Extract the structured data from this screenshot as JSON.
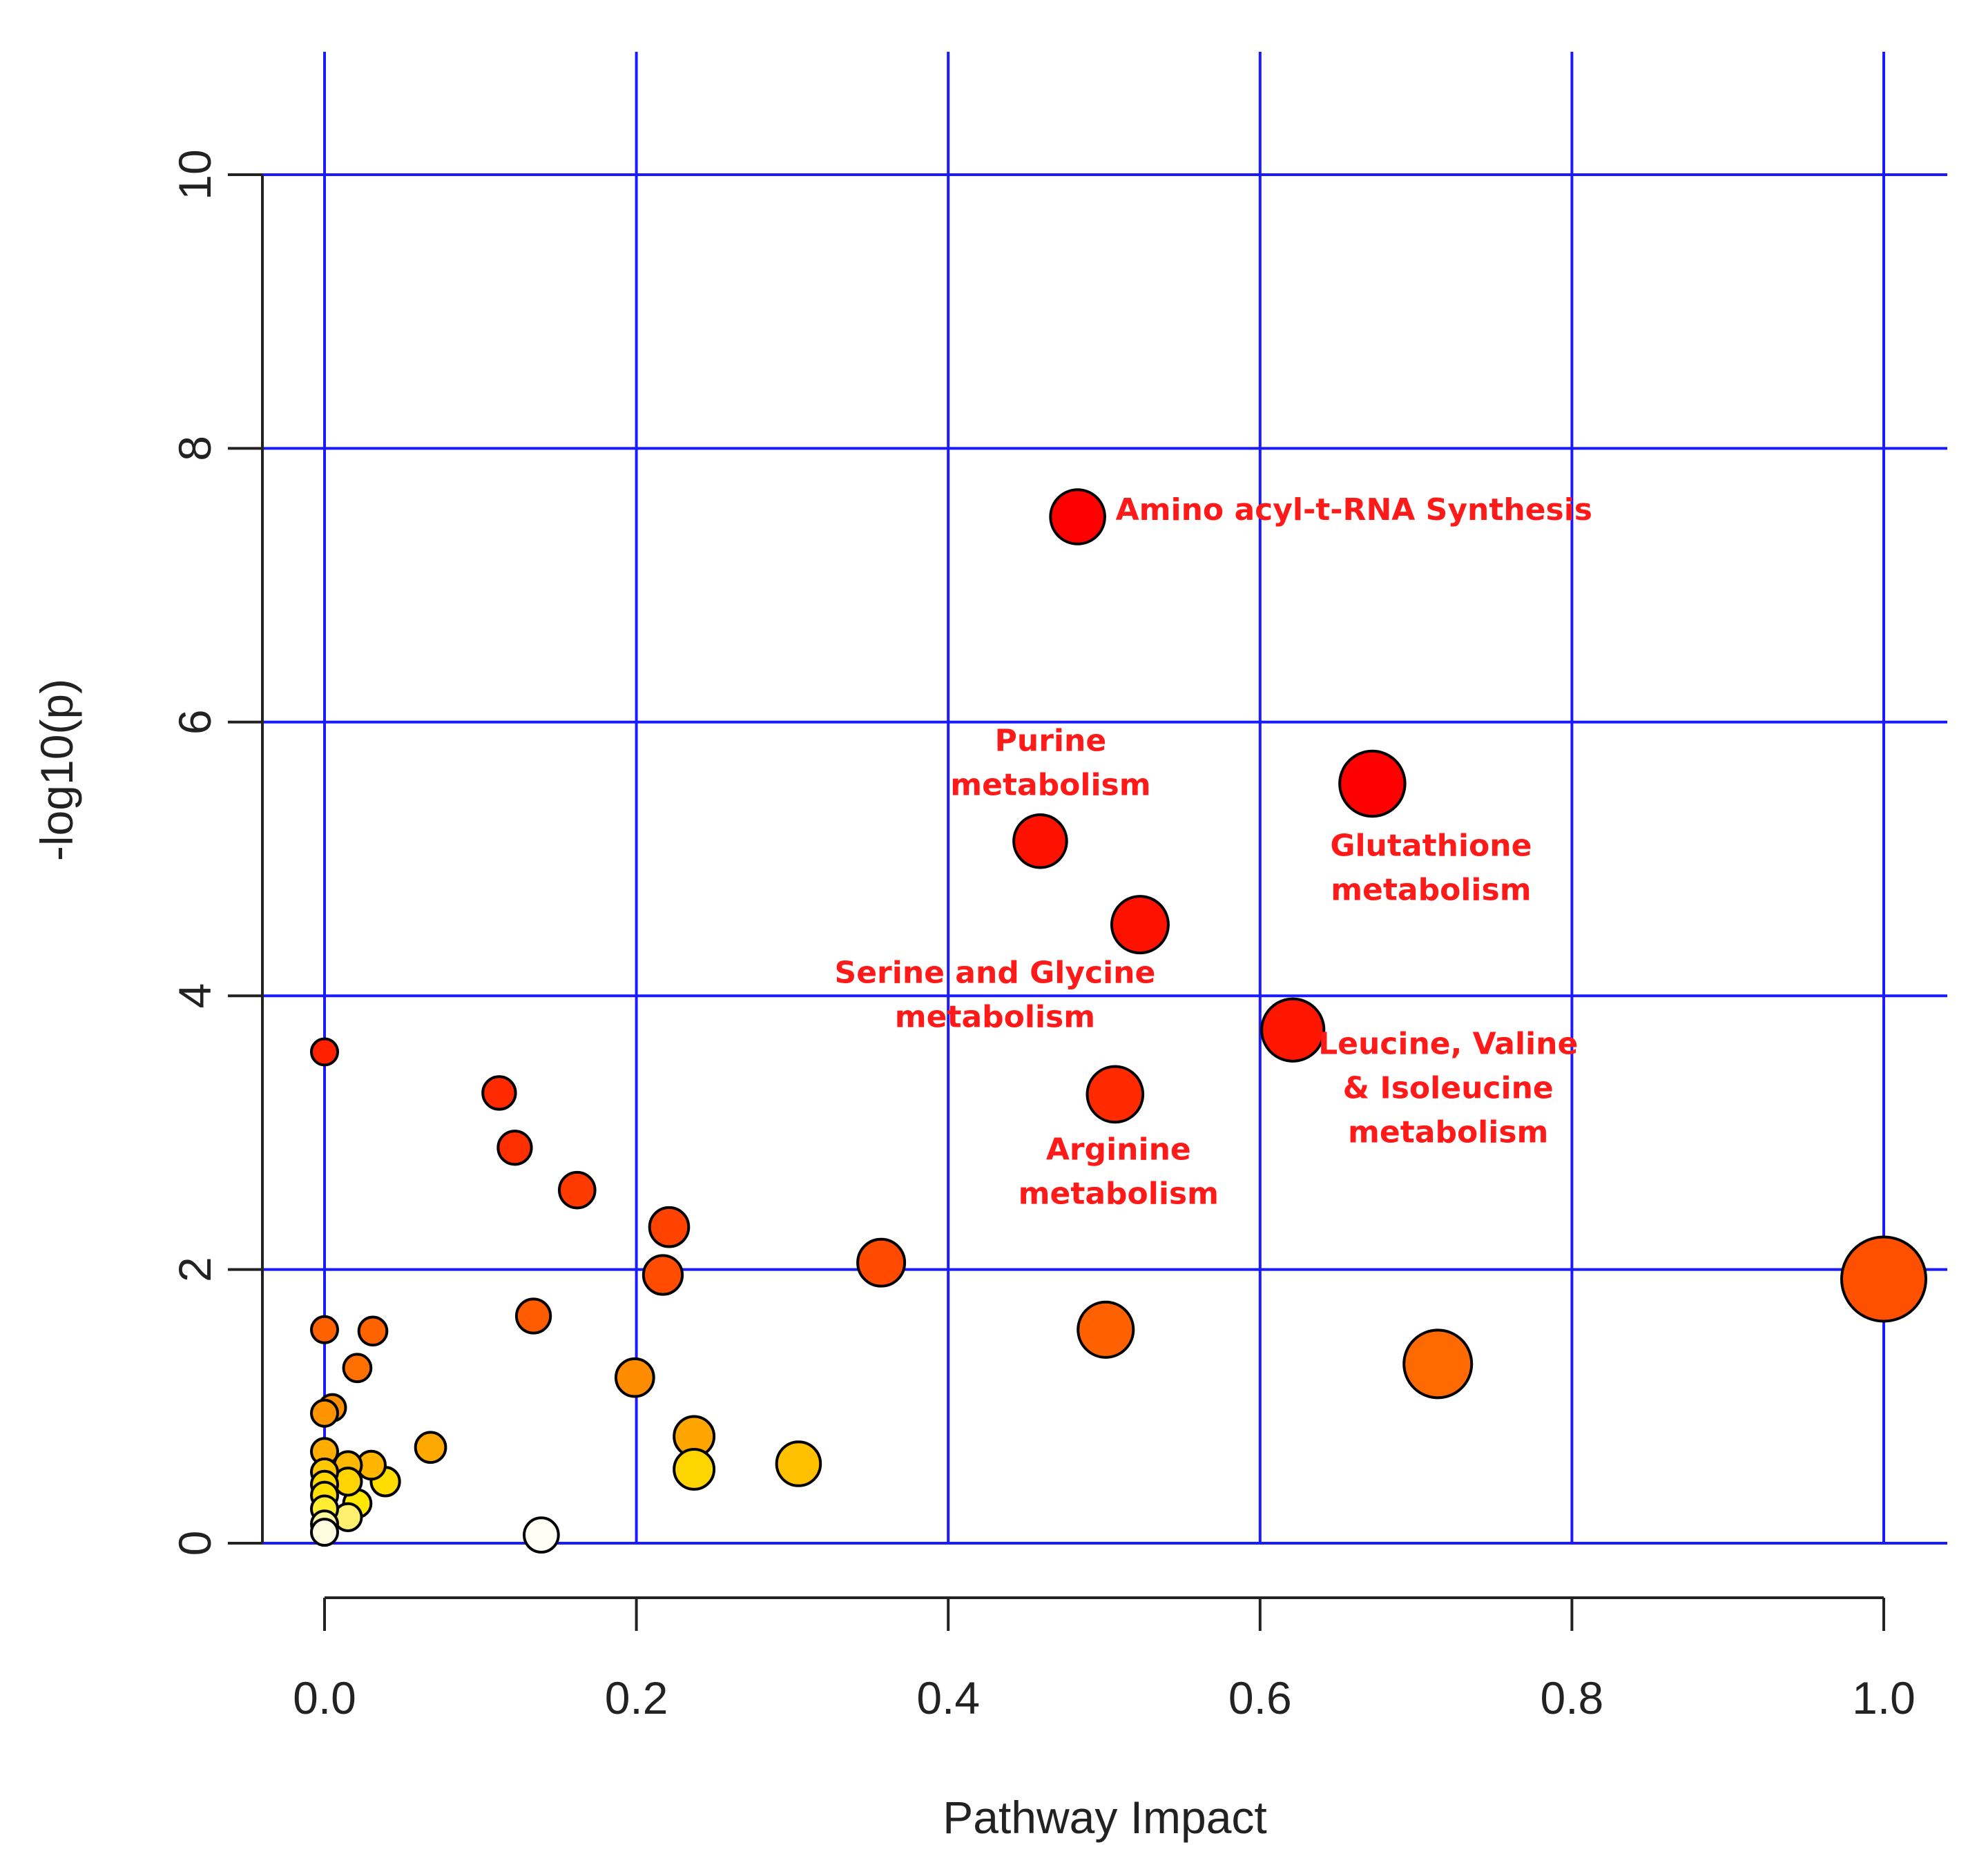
{
  "chart_data": {
    "type": "scatter",
    "title": "",
    "xlabel": "Pathway Impact",
    "ylabel": "-log10(p)",
    "xlim": [
      0.0,
      1.0
    ],
    "ylim": [
      0,
      10
    ],
    "x_ticks": [
      0.0,
      0.2,
      0.4,
      0.6,
      0.8,
      1.0
    ],
    "x_tick_labels": [
      "0.0",
      "0.2",
      "0.4",
      "0.6",
      "0.8",
      "1.0"
    ],
    "y_ticks": [
      0,
      2,
      4,
      6,
      8,
      10
    ],
    "y_tick_labels": [
      "0",
      "2",
      "4",
      "6",
      "8",
      "10"
    ],
    "grid": true,
    "grid_color": "#1a1aff",
    "annotation_color": "#ff1a1a",
    "size_encoding": "pathway impact",
    "color_encoding": "-log10(p)",
    "points": [
      {
        "x": 0.483,
        "y": 7.5,
        "color": "#ff0000",
        "label": "Amino acyl-t-RNA Synthesis"
      },
      {
        "x": 0.672,
        "y": 5.55,
        "color": "#ff0000",
        "label": "Glutathione metabolism"
      },
      {
        "x": 0.459,
        "y": 5.13,
        "color": "#ff1100",
        "label": "Purine metabolism"
      },
      {
        "x": 0.523,
        "y": 4.52,
        "color": "#ff1100",
        "label": "Serine and Glycine metabolism"
      },
      {
        "x": 0.621,
        "y": 3.75,
        "color": "#ff1500",
        "label": "Leucine, Valine & Isoleucine metabolism"
      },
      {
        "x": 0.507,
        "y": 3.28,
        "color": "#ff2a00",
        "label": "Arginine metabolism"
      },
      {
        "x": 0.0,
        "y": 3.59,
        "color": "#ff2000"
      },
      {
        "x": 0.112,
        "y": 3.29,
        "color": "#ff2a00"
      },
      {
        "x": 0.122,
        "y": 2.89,
        "color": "#ff2f00"
      },
      {
        "x": 0.162,
        "y": 2.58,
        "color": "#ff3a00"
      },
      {
        "x": 0.221,
        "y": 2.31,
        "color": "#ff4200"
      },
      {
        "x": 0.217,
        "y": 1.96,
        "color": "#ff4c00"
      },
      {
        "x": 0.357,
        "y": 2.05,
        "color": "#ff4a00"
      },
      {
        "x": 1.0,
        "y": 1.93,
        "color": "#ff5000"
      },
      {
        "x": 0.501,
        "y": 1.56,
        "color": "#ff6000"
      },
      {
        "x": 0.714,
        "y": 1.31,
        "color": "#ff6a00"
      },
      {
        "x": 0.134,
        "y": 1.66,
        "color": "#ff5c00"
      },
      {
        "x": 0.0,
        "y": 1.56,
        "color": "#ff6000"
      },
      {
        "x": 0.031,
        "y": 1.55,
        "color": "#ff6300"
      },
      {
        "x": 0.021,
        "y": 1.28,
        "color": "#ff7000"
      },
      {
        "x": 0.199,
        "y": 1.21,
        "color": "#ff8c00"
      },
      {
        "x": 0.005,
        "y": 0.99,
        "color": "#ff8f00"
      },
      {
        "x": 0.0,
        "y": 0.95,
        "color": "#ff9400"
      },
      {
        "x": 0.237,
        "y": 0.78,
        "color": "#ffa500"
      },
      {
        "x": 0.068,
        "y": 0.7,
        "color": "#ffa800"
      },
      {
        "x": 0.0,
        "y": 0.67,
        "color": "#ffad00"
      },
      {
        "x": 0.015,
        "y": 0.57,
        "color": "#ffb800"
      },
      {
        "x": 0.03,
        "y": 0.57,
        "color": "#ffb400"
      },
      {
        "x": 0.304,
        "y": 0.58,
        "color": "#ffc000"
      },
      {
        "x": 0.237,
        "y": 0.54,
        "color": "#ffd500"
      },
      {
        "x": 0.0,
        "y": 0.52,
        "color": "#ffc800"
      },
      {
        "x": 0.015,
        "y": 0.45,
        "color": "#ffd400"
      },
      {
        "x": 0.039,
        "y": 0.45,
        "color": "#ffdd00"
      },
      {
        "x": 0.0,
        "y": 0.43,
        "color": "#ffd800"
      },
      {
        "x": 0.0,
        "y": 0.35,
        "color": "#ffe000"
      },
      {
        "x": 0.021,
        "y": 0.29,
        "color": "#ffe800"
      },
      {
        "x": 0.0,
        "y": 0.25,
        "color": "#ffee33"
      },
      {
        "x": 0.015,
        "y": 0.19,
        "color": "#fff070"
      },
      {
        "x": 0.0,
        "y": 0.14,
        "color": "#fff6a0"
      },
      {
        "x": 0.0,
        "y": 0.08,
        "color": "#fffbe0"
      },
      {
        "x": 0.139,
        "y": 0.06,
        "color": "#fffff5"
      }
    ],
    "annotations": [
      {
        "lines": [
          "Amino acyl-t-RNA Synthesis"
        ],
        "anchor": "start"
      },
      {
        "lines": [
          "Purine",
          "metabolism"
        ],
        "anchor": "middle"
      },
      {
        "lines": [
          "Glutathione",
          "metabolism"
        ],
        "anchor": "middle"
      },
      {
        "lines": [
          "Serine and Glycine",
          "metabolism"
        ],
        "anchor": "middle"
      },
      {
        "lines": [
          "Leucine, Valine",
          "& Isoleucine",
          "metabolism"
        ],
        "anchor": "middle"
      },
      {
        "lines": [
          "Arginine",
          "metabolism"
        ],
        "anchor": "middle"
      }
    ]
  }
}
